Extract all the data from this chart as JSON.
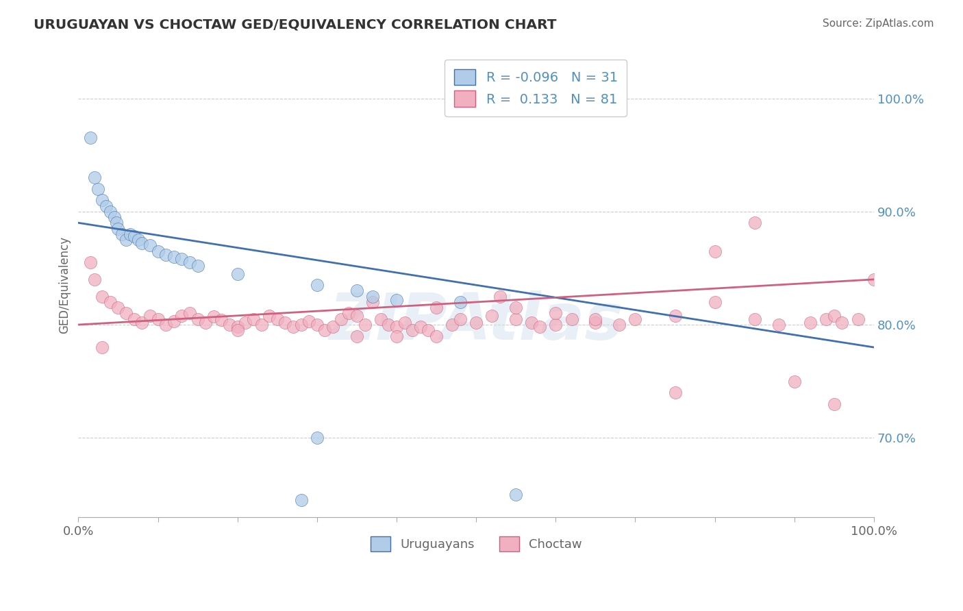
{
  "title": "URUGUAYAN VS CHOCTAW GED/EQUIVALENCY CORRELATION CHART",
  "source": "Source: ZipAtlas.com",
  "ylabel": "GED/Equivalency",
  "xlim": [
    0.0,
    100.0
  ],
  "ylim": [
    63.0,
    104.0
  ],
  "yticks": [
    70.0,
    80.0,
    90.0,
    100.0
  ],
  "ytick_labels": [
    "70.0%",
    "80.0%",
    "90.0%",
    "100.0%"
  ],
  "xticks": [
    0,
    10,
    20,
    30,
    40,
    50,
    60,
    70,
    80,
    90,
    100
  ],
  "watermark": "ZIPAtlas",
  "legend_R1": "-0.096",
  "legend_N1": "31",
  "legend_R2": "0.133",
  "legend_N2": "81",
  "uruguayan_color": "#b0cce8",
  "choctaw_color": "#f0b0c0",
  "trend_blue": "#4070b0",
  "trend_pink": "#d06080",
  "grid_color": "#cccccc",
  "background_color": "#ffffff",
  "tick_label_color": "#5090c0",
  "axis_label_color": "#666666",
  "title_color": "#333333",
  "uruguayan_x": [
    1.5,
    2.0,
    2.5,
    3.0,
    3.5,
    4.0,
    4.5,
    4.8,
    5.0,
    5.5,
    6.0,
    6.5,
    7.0,
    7.5,
    8.0,
    9.0,
    10.0,
    11.0,
    12.0,
    13.0,
    14.0,
    15.0,
    20.0,
    30.0,
    35.0,
    37.0,
    40.0,
    48.0,
    55.0,
    30.0,
    28.0
  ],
  "uruguayan_y": [
    96.5,
    93.0,
    92.0,
    91.0,
    90.5,
    90.0,
    89.5,
    89.0,
    88.5,
    88.0,
    87.5,
    88.0,
    87.8,
    87.5,
    87.2,
    87.0,
    86.5,
    86.2,
    86.0,
    85.8,
    85.5,
    85.2,
    84.5,
    83.5,
    83.0,
    82.5,
    82.2,
    82.0,
    65.0,
    70.0,
    64.5
  ],
  "choctaw_x": [
    1.5,
    2.0,
    3.0,
    4.0,
    5.0,
    6.0,
    7.0,
    8.0,
    9.0,
    10.0,
    11.0,
    12.0,
    13.0,
    14.0,
    15.0,
    16.0,
    17.0,
    18.0,
    19.0,
    20.0,
    21.0,
    22.0,
    23.0,
    24.0,
    25.0,
    26.0,
    27.0,
    28.0,
    29.0,
    30.0,
    31.0,
    32.0,
    33.0,
    34.0,
    35.0,
    36.0,
    37.0,
    38.0,
    39.0,
    40.0,
    41.0,
    42.0,
    43.0,
    44.0,
    45.0,
    47.0,
    48.0,
    50.0,
    52.0,
    53.0,
    55.0,
    57.0,
    58.0,
    60.0,
    62.0,
    65.0,
    68.0,
    70.0,
    75.0,
    80.0,
    85.0,
    88.0,
    90.0,
    92.0,
    94.0,
    95.0,
    96.0,
    98.0,
    100.0,
    3.0,
    35.0,
    65.0,
    75.0,
    85.0,
    95.0,
    45.0,
    55.0,
    20.0,
    40.0,
    60.0,
    80.0
  ],
  "choctaw_y": [
    85.5,
    84.0,
    82.5,
    82.0,
    81.5,
    81.0,
    80.5,
    80.2,
    80.8,
    80.5,
    80.0,
    80.3,
    80.8,
    81.0,
    80.5,
    80.2,
    80.7,
    80.4,
    80.0,
    79.8,
    80.2,
    80.5,
    80.0,
    80.8,
    80.5,
    80.2,
    79.8,
    80.0,
    80.3,
    80.0,
    79.5,
    79.8,
    80.5,
    81.0,
    80.8,
    80.0,
    82.0,
    80.5,
    80.0,
    79.8,
    80.2,
    79.5,
    79.8,
    79.5,
    81.5,
    80.0,
    80.5,
    80.2,
    80.8,
    82.5,
    80.5,
    80.2,
    79.8,
    80.0,
    80.5,
    80.2,
    80.0,
    80.5,
    80.8,
    86.5,
    80.5,
    80.0,
    75.0,
    80.2,
    80.5,
    80.8,
    80.2,
    80.5,
    84.0,
    78.0,
    79.0,
    80.5,
    74.0,
    89.0,
    73.0,
    79.0,
    81.5,
    79.5,
    79.0,
    81.0,
    82.0
  ]
}
